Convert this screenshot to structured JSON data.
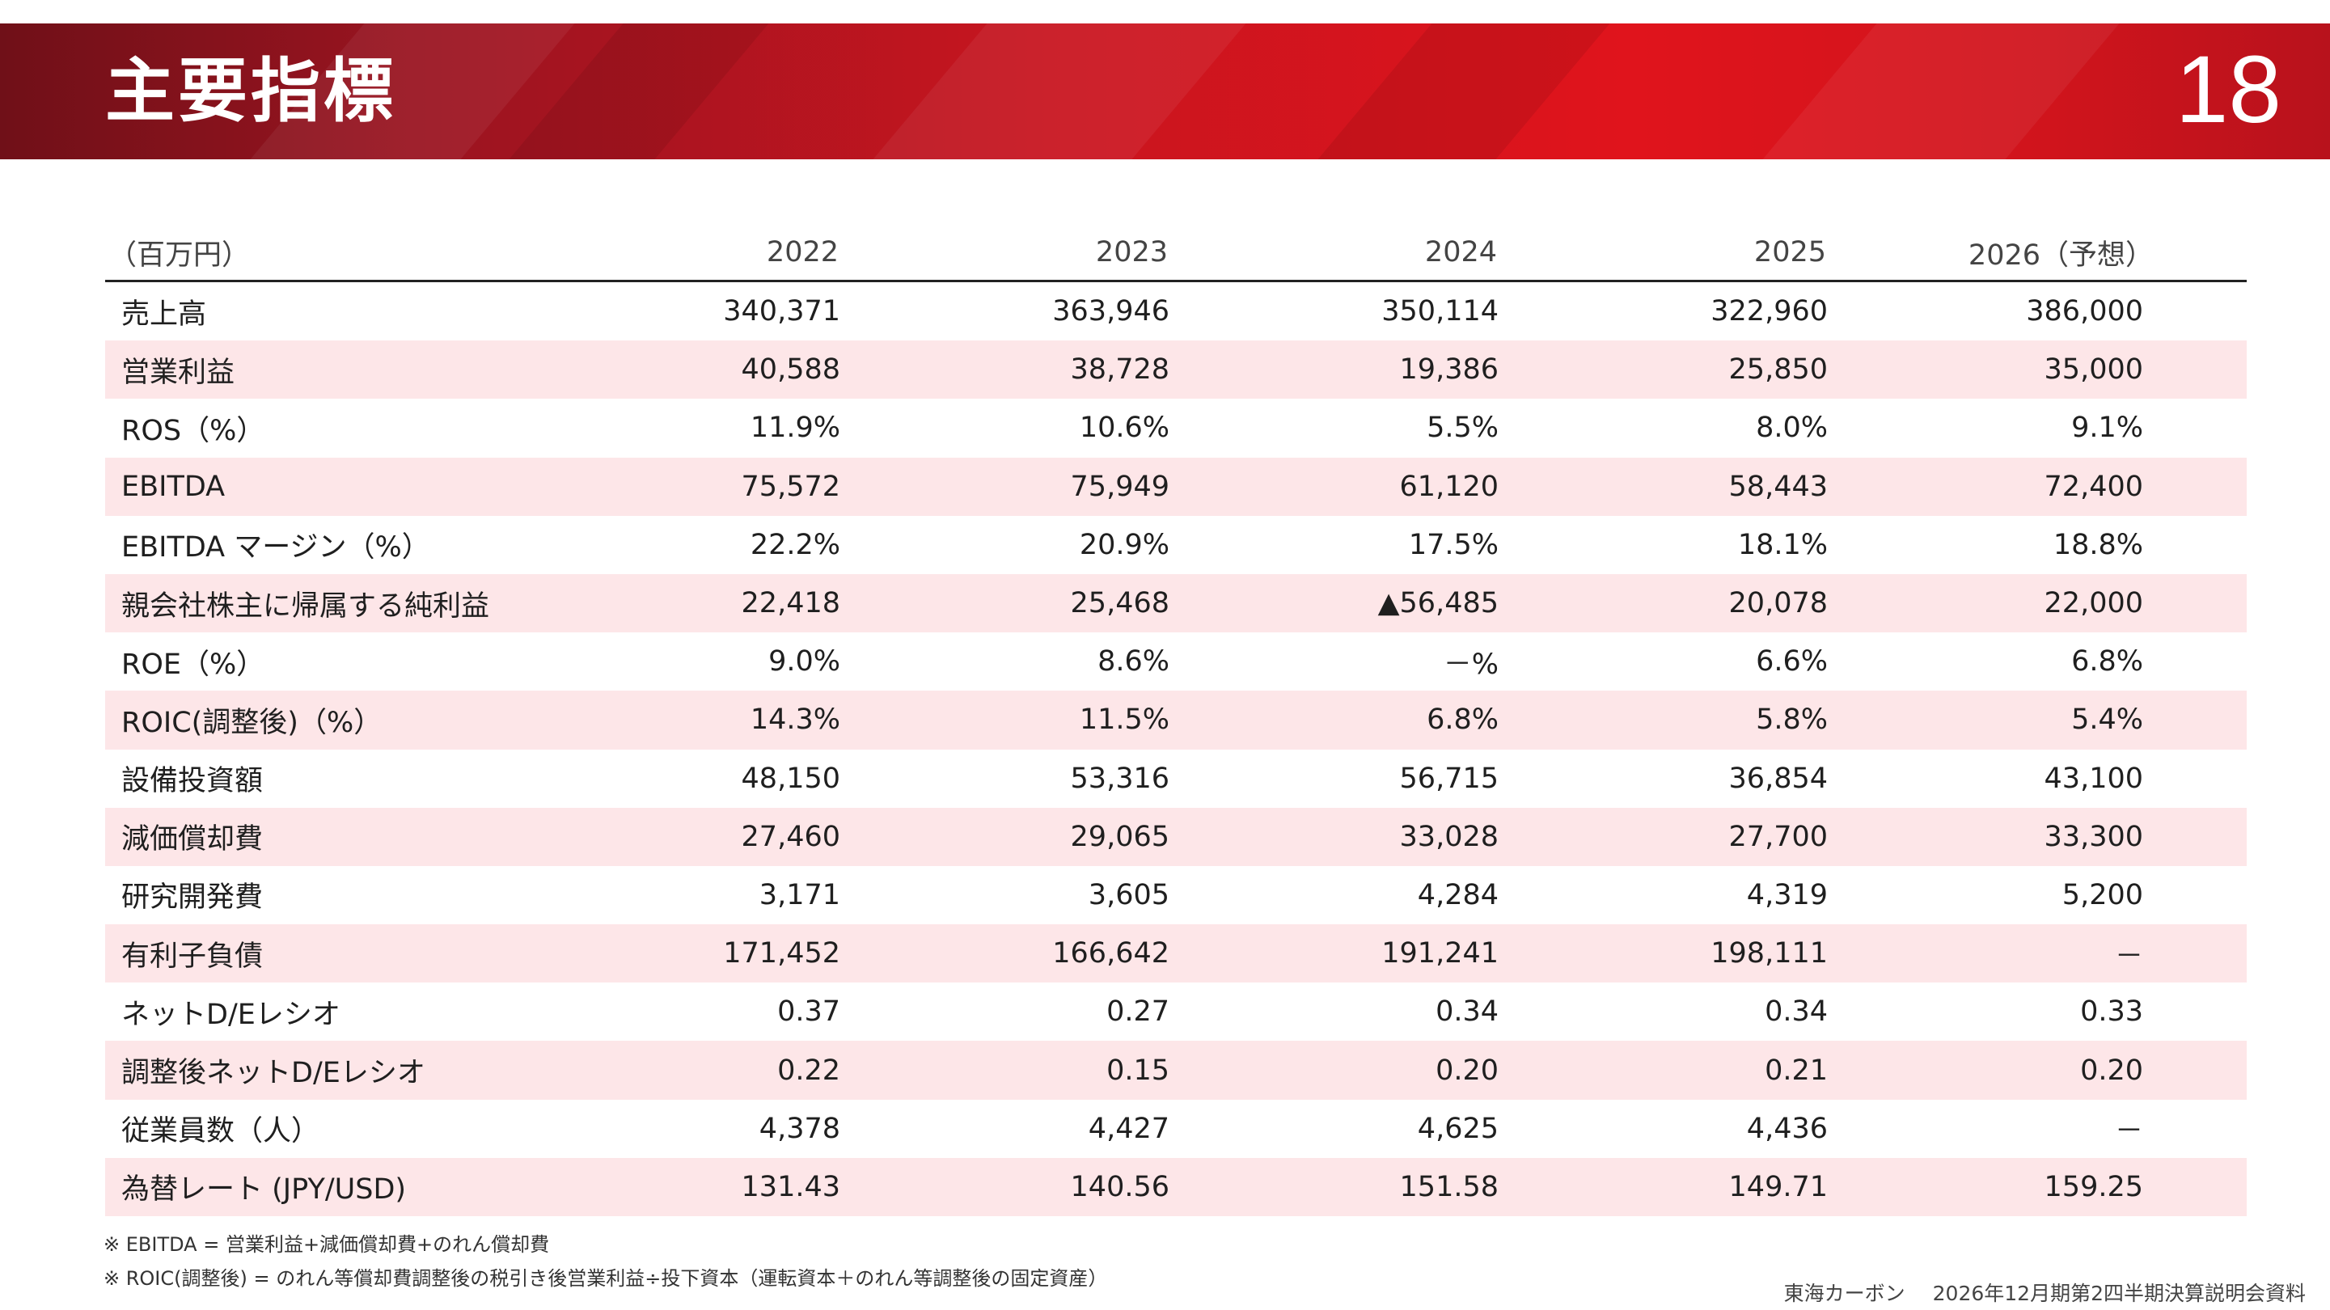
{
  "header": {
    "title": "主要指標",
    "page_number": "18"
  },
  "table": {
    "unit_label": "（百万円）",
    "years": [
      "2022",
      "2023",
      "2024",
      "2025",
      "2026（予想）"
    ],
    "rows": [
      {
        "label": "売上高",
        "values": [
          "340,371",
          "363,946",
          "350,114",
          "322,960",
          "386,000"
        ]
      },
      {
        "label": "営業利益",
        "values": [
          "40,588",
          "38,728",
          "19,386",
          "25,850",
          "35,000"
        ]
      },
      {
        "label": "ROS（%）",
        "values": [
          "11.9%",
          "10.6%",
          "5.5%",
          "8.0%",
          "9.1%"
        ]
      },
      {
        "label": "EBITDA",
        "values": [
          "75,572",
          "75,949",
          "61,120",
          "58,443",
          "72,400"
        ]
      },
      {
        "label": "EBITDA マージン（%）",
        "values": [
          "22.2%",
          "20.9%",
          "17.5%",
          "18.1%",
          "18.8%"
        ]
      },
      {
        "label": "親会社株主に帰属する純利益",
        "values": [
          "22,418",
          "25,468",
          "▲56,485",
          "20,078",
          "22,000"
        ]
      },
      {
        "label": "ROE（%）",
        "values": [
          "9.0%",
          "8.6%",
          "－%",
          "6.6%",
          "6.8%"
        ]
      },
      {
        "label": "ROIC(調整後)（%）",
        "values": [
          "14.3%",
          "11.5%",
          "6.8%",
          "5.8%",
          "5.4%"
        ]
      },
      {
        "label": "設備投資額",
        "values": [
          "48,150",
          "53,316",
          "56,715",
          "36,854",
          "43,100"
        ]
      },
      {
        "label": "減価償却費",
        "values": [
          "27,460",
          "29,065",
          "33,028",
          "27,700",
          "33,300"
        ]
      },
      {
        "label": "研究開発費",
        "values": [
          "3,171",
          "3,605",
          "4,284",
          "4,319",
          "5,200"
        ]
      },
      {
        "label": "有利子負債",
        "values": [
          "171,452",
          "166,642",
          "191,241",
          "198,111",
          "－"
        ]
      },
      {
        "label": "ネットD/Eレシオ",
        "values": [
          "0.37",
          "0.27",
          "0.34",
          "0.34",
          "0.33"
        ]
      },
      {
        "label": "調整後ネットD/Eレシオ",
        "values": [
          "0.22",
          "0.15",
          "0.20",
          "0.21",
          "0.20"
        ]
      },
      {
        "label": "従業員数（人）",
        "values": [
          "4,378",
          "4,427",
          "4,625",
          "4,436",
          "－"
        ]
      },
      {
        "label": "為替レート (JPY/USD)",
        "values": [
          "131.43",
          "140.56",
          "151.58",
          "149.71",
          "159.25"
        ]
      }
    ]
  },
  "notes": [
    "※ EBITDA = 営業利益+減価償却費+のれん償却費",
    "※ ROIC(調整後) = のれん等償却費調整後の税引き後営業利益÷投下資本（運転資本＋のれん等調整後の固定資産）"
  ],
  "footer": {
    "company": "東海カーボン",
    "document": "2026年12月期第2四半期決算説明会資料"
  },
  "colors": {
    "header_red": "#d0141c",
    "row_highlight": "#fde6e8"
  }
}
